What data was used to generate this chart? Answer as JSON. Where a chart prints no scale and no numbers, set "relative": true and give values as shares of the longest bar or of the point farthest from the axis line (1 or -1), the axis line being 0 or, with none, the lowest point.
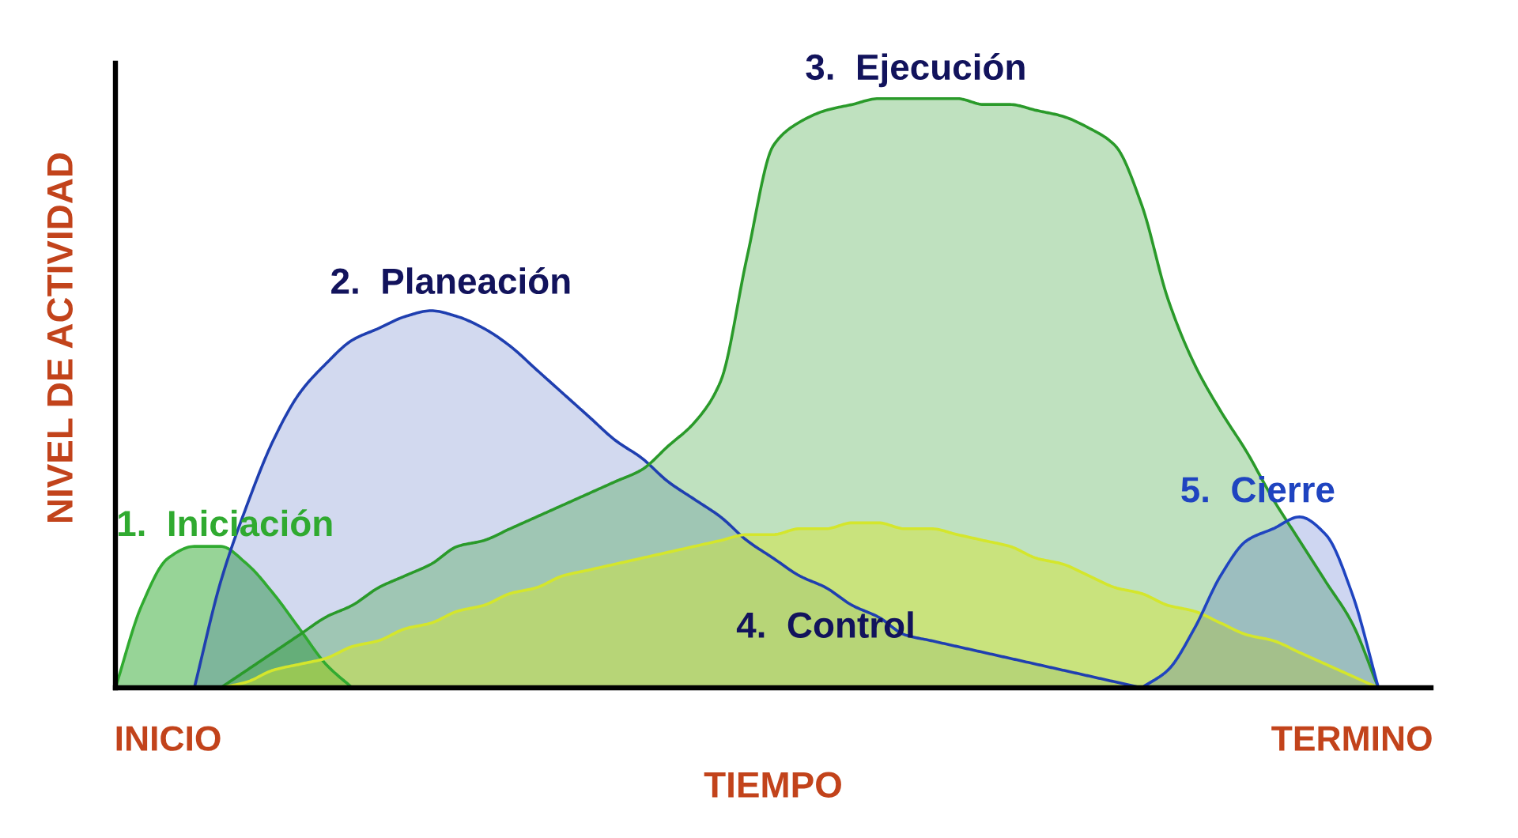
{
  "chart_data": {
    "type": "area",
    "relative": true,
    "xlabel": "TIEMPO",
    "ylabel": "NIVEL DE ACTIVIDAD",
    "categories": [
      null,
      null,
      "INICIO",
      null,
      null,
      null,
      null,
      null,
      null,
      null,
      null,
      null,
      null,
      null,
      null,
      null,
      null,
      null,
      null,
      null,
      null,
      null,
      null,
      null,
      null,
      null,
      null,
      null,
      null,
      null,
      null,
      null,
      null,
      null,
      null,
      null,
      null,
      null,
      null,
      null,
      null,
      null,
      null,
      null,
      null,
      null,
      null,
      "TERMINO",
      null,
      null,
      null
    ],
    "series": [
      {
        "name": "1.  Iniciación",
        "color": "#30aa30",
        "values": [
          0,
          0.14,
          0.22,
          0.24,
          0.24,
          0.21,
          0.16,
          0.1,
          0.04,
          0,
          null,
          null,
          null,
          null,
          null,
          null,
          null,
          null,
          null,
          null,
          null,
          null,
          null,
          null,
          null,
          null,
          null,
          null,
          null,
          null,
          null,
          null,
          null,
          null,
          null,
          null,
          null,
          null,
          null,
          null,
          null,
          null,
          null,
          null,
          null,
          null,
          null,
          null,
          null,
          null,
          null
        ]
      },
      {
        "name": "2.  Planeación",
        "color": "#1f3fb0",
        "values": [
          null,
          null,
          null,
          0,
          0.18,
          0.31,
          0.42,
          0.5,
          0.55,
          0.59,
          0.61,
          0.63,
          0.64,
          0.63,
          0.61,
          0.58,
          0.54,
          0.5,
          0.46,
          0.42,
          0.39,
          0.35,
          0.32,
          0.29,
          0.25,
          0.22,
          0.19,
          0.17,
          0.14,
          0.12,
          0.09,
          0.08,
          0.07,
          0.06,
          0.05,
          0.04,
          0.03,
          0.02,
          0.01,
          0,
          null,
          null,
          null,
          null,
          null,
          null,
          null,
          null,
          null,
          null,
          null
        ]
      },
      {
        "name": "3.  Ejecución",
        "color": "#2a9a2a",
        "values": [
          null,
          null,
          null,
          null,
          0,
          0.03,
          0.06,
          0.09,
          0.12,
          0.14,
          0.17,
          0.19,
          0.21,
          0.24,
          0.25,
          0.27,
          0.29,
          0.31,
          0.33,
          0.35,
          0.37,
          0.41,
          0.45,
          0.52,
          0.73,
          0.92,
          0.96,
          0.98,
          0.99,
          1.0,
          1.0,
          1.0,
          1.0,
          0.99,
          0.99,
          0.98,
          0.97,
          0.95,
          0.92,
          0.82,
          0.66,
          0.55,
          0.47,
          0.4,
          0.32,
          0.25,
          0.18,
          0.11,
          0,
          null,
          null
        ]
      },
      {
        "name": "4.  Control",
        "color": "#d4e62c",
        "values": [
          null,
          null,
          null,
          null,
          0,
          0.01,
          0.03,
          0.04,
          0.05,
          0.07,
          0.08,
          0.1,
          0.11,
          0.13,
          0.14,
          0.16,
          0.17,
          0.19,
          0.2,
          0.21,
          0.22,
          0.23,
          0.24,
          0.25,
          0.26,
          0.26,
          0.27,
          0.27,
          0.28,
          0.28,
          0.27,
          0.27,
          0.26,
          0.25,
          0.24,
          0.22,
          0.21,
          0.19,
          0.17,
          0.16,
          0.14,
          0.13,
          0.11,
          0.09,
          0.08,
          0.06,
          0.04,
          0.02,
          0,
          null,
          null
        ]
      },
      {
        "name": "5.  Cierre",
        "color": "#1f44c0",
        "values": [
          null,
          null,
          null,
          null,
          null,
          null,
          null,
          null,
          null,
          null,
          null,
          null,
          null,
          null,
          null,
          null,
          null,
          null,
          null,
          null,
          null,
          null,
          null,
          null,
          null,
          null,
          null,
          null,
          null,
          null,
          null,
          null,
          null,
          null,
          null,
          null,
          null,
          null,
          null,
          0,
          0.03,
          0.1,
          0.19,
          0.25,
          0.27,
          0.29,
          0.26,
          0.16,
          0,
          null,
          null
        ]
      }
    ]
  }
}
